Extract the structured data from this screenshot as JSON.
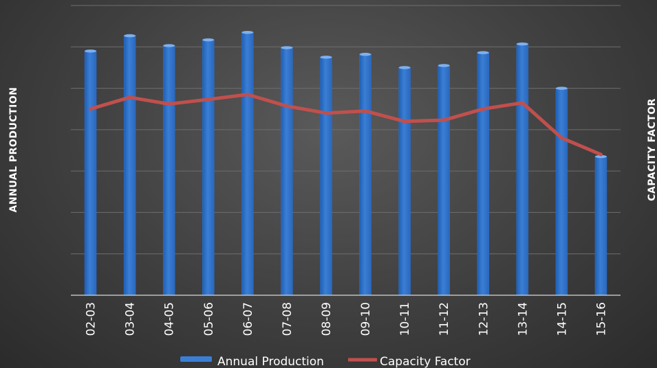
{
  "chart_data": {
    "type": "bar",
    "title": "",
    "xlabel": "",
    "ylabel": "ANNUAL PRODUCTION",
    "y2label": "CAPACITY FACTOR",
    "ylim": [
      0,
      7
    ],
    "y2lim": [
      0,
      7
    ],
    "categories": [
      "02-03",
      "03-04",
      "04-05",
      "05-06",
      "06-07",
      "07-08",
      "08-09",
      "09-10",
      "10-11",
      "11-12",
      "12-13",
      "13-14",
      "14-15",
      "15-16"
    ],
    "series": [
      {
        "name": "Annual Production",
        "type": "bar",
        "axis": "left",
        "color": "#3a7fd5",
        "values": [
          5.9,
          6.27,
          6.03,
          6.17,
          6.35,
          5.98,
          5.75,
          5.82,
          5.5,
          5.55,
          5.86,
          6.07,
          5.0,
          3.35
        ]
      },
      {
        "name": "Capacity Factor",
        "type": "line",
        "axis": "right",
        "color": "#c0504d",
        "values": [
          4.5,
          4.78,
          4.62,
          4.73,
          4.85,
          4.57,
          4.4,
          4.45,
          4.2,
          4.23,
          4.5,
          4.65,
          3.8,
          3.4
        ]
      }
    ],
    "grid": true,
    "legend_position": "bottom"
  }
}
